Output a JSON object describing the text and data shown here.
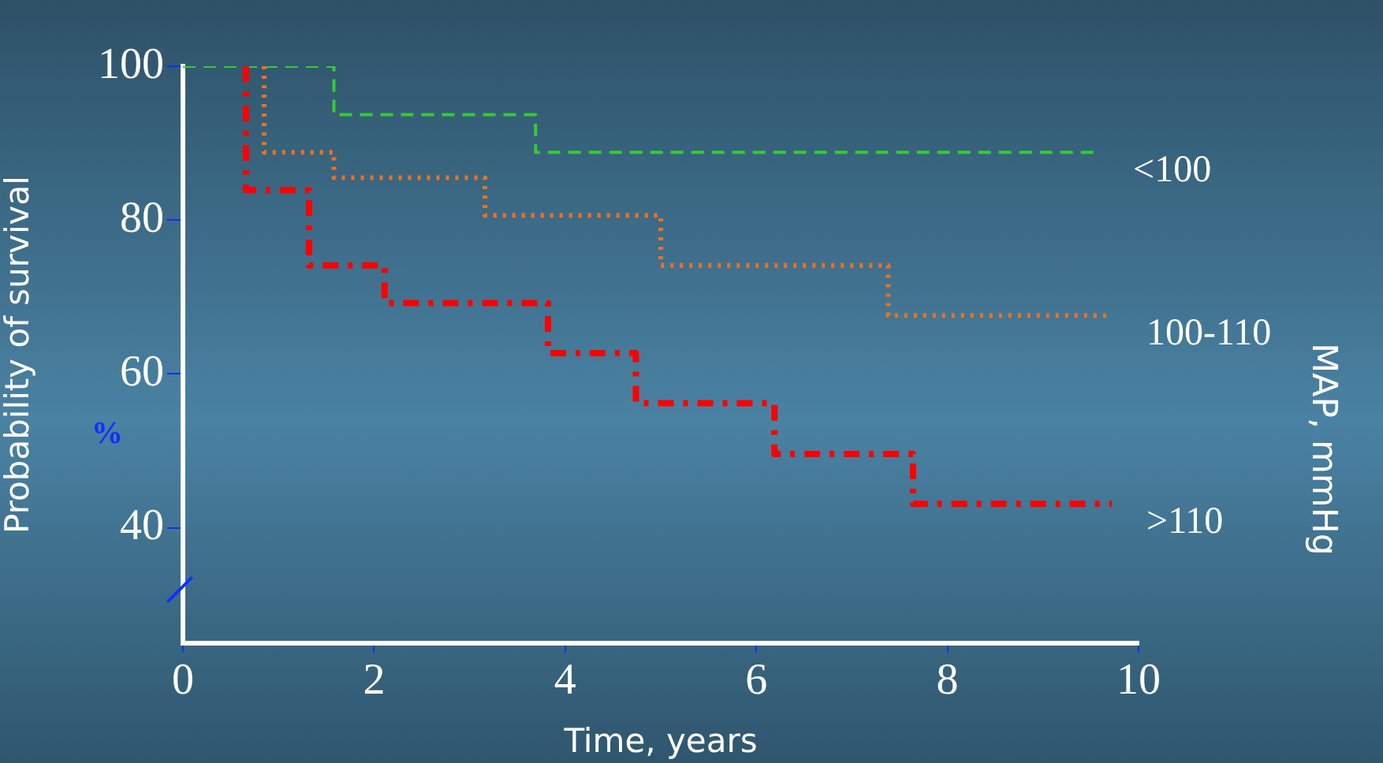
{
  "chart_data": {
    "type": "step",
    "xlabel": "Time, years",
    "ylabel": "Probability of survival",
    "legend_title": "MAP, mmHg",
    "annotations": [
      "%"
    ],
    "xlim": [
      0,
      10
    ],
    "xticks": [
      0,
      2,
      4,
      6,
      8,
      10
    ],
    "ylim": [
      25,
      100
    ],
    "yticks": [
      40,
      60,
      80,
      100
    ],
    "grid": false,
    "legend": false,
    "marker": "none",
    "series": [
      {
        "name": "<100",
        "color": "#33cc33",
        "line_style": "dashed",
        "x": [
          0,
          1.58,
          3.69,
          9.58
        ],
        "values": [
          100,
          93.7,
          88.8,
          88.8
        ]
      },
      {
        "name": "100-110",
        "color": "#f07020",
        "line_style": "dotted",
        "x": [
          0.85,
          0.85,
          1.58,
          3.16,
          5.0,
          7.38,
          9.72
        ],
        "values": [
          100,
          88.8,
          85.5,
          80.6,
          74.1,
          67.6,
          67.6
        ]
      },
      {
        "name": ">110",
        "color": "#ff0000",
        "line_style": "dashdot",
        "x": [
          0.66,
          0.66,
          1.32,
          2.11,
          3.82,
          4.74,
          6.19,
          7.64,
          9.72
        ],
        "values": [
          100,
          83.9,
          74.1,
          69.2,
          62.7,
          56.2,
          49.6,
          43.1,
          43.1
        ]
      }
    ]
  }
}
